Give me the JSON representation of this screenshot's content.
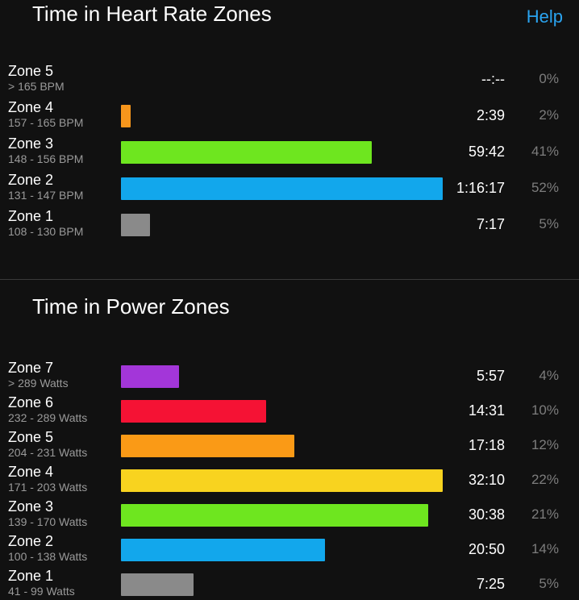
{
  "heart_rate": {
    "title": "Time in Heart Rate Zones",
    "help_label": "Help",
    "zones": [
      {
        "name": "Zone 5",
        "range": "> 165 BPM",
        "time": "--:--",
        "percent": "0%",
        "fraction": 0,
        "color": "#888888"
      },
      {
        "name": "Zone 4",
        "range": "157 - 165 BPM",
        "time": "2:39",
        "percent": "2%",
        "fraction": 0.03,
        "color": "#f7961c"
      },
      {
        "name": "Zone 3",
        "range": "148 - 156 BPM",
        "time": "59:42",
        "percent": "41%",
        "fraction": 0.78,
        "color": "#6ee61f"
      },
      {
        "name": "Zone 2",
        "range": "131 - 147 BPM",
        "time": "1:16:17",
        "percent": "52%",
        "fraction": 1.0,
        "color": "#12a7ec"
      },
      {
        "name": "Zone 1",
        "range": "108 - 130 BPM",
        "time": "7:17",
        "percent": "5%",
        "fraction": 0.09,
        "color": "#8a8a8a"
      }
    ]
  },
  "power": {
    "title": "Time in Power Zones",
    "zones": [
      {
        "name": "Zone 7",
        "range": "> 289 Watts",
        "time": "5:57",
        "percent": "4%",
        "fraction": 0.18,
        "color": "#a336d9"
      },
      {
        "name": "Zone 6",
        "range": "232 - 289 Watts",
        "time": "14:31",
        "percent": "10%",
        "fraction": 0.45,
        "color": "#f51234"
      },
      {
        "name": "Zone 5",
        "range": "204 - 231 Watts",
        "time": "17:18",
        "percent": "12%",
        "fraction": 0.54,
        "color": "#fa9a16"
      },
      {
        "name": "Zone 4",
        "range": "171 - 203 Watts",
        "time": "32:10",
        "percent": "22%",
        "fraction": 1.0,
        "color": "#f8d31f"
      },
      {
        "name": "Zone 3",
        "range": "139 - 170 Watts",
        "time": "30:38",
        "percent": "21%",
        "fraction": 0.955,
        "color": "#6ee61f"
      },
      {
        "name": "Zone 2",
        "range": "100 - 138 Watts",
        "time": "20:50",
        "percent": "14%",
        "fraction": 0.635,
        "color": "#12a7ec"
      },
      {
        "name": "Zone 1",
        "range": "41 - 99 Watts",
        "time": "7:25",
        "percent": "5%",
        "fraction": 0.225,
        "color": "#8a8a8a"
      }
    ]
  }
}
